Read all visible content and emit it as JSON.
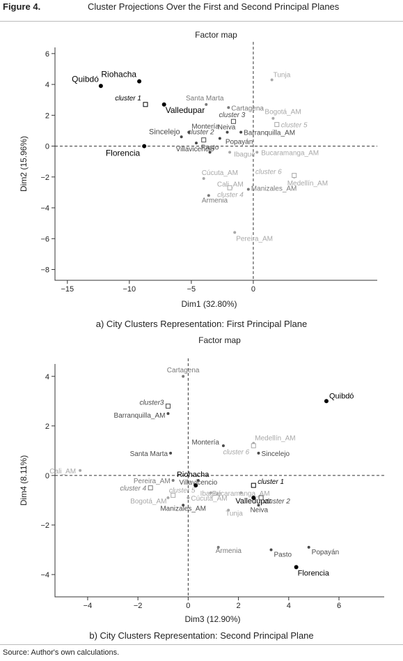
{
  "figure": {
    "label": "Figure 4.",
    "title": "Cluster Projections Over the First and Second Principal Planes",
    "source": "Source: Author's own calculations."
  },
  "chart_data": [
    {
      "type": "scatter",
      "title": "Factor map",
      "caption": "a) City Clusters Representation: First Principal Plane",
      "xlabel": "Dim1 (32.80%)",
      "ylabel": "Dim2 (15.96%)",
      "xlim": [
        -16,
        10
      ],
      "ylim": [
        -8.7,
        6.4
      ],
      "xticks": [
        -15,
        -10,
        -5,
        0
      ],
      "yticks": [
        6,
        4,
        2,
        0,
        -2,
        -4,
        -6,
        -8
      ],
      "points": [
        {
          "label": "Quibdó",
          "x": -12.3,
          "y": 3.9,
          "tone": "black",
          "lx": -3,
          "ly": -6,
          "anchor": "end",
          "size": 12
        },
        {
          "label": "Riohacha",
          "x": -9.2,
          "y": 4.2,
          "tone": "black",
          "lx": -4,
          "ly": -6,
          "anchor": "end",
          "size": 12
        },
        {
          "label": "Valledupar",
          "x": -7.2,
          "y": 2.7,
          "tone": "black",
          "lx": 2,
          "ly": 12,
          "anchor": "start",
          "size": 12
        },
        {
          "label": "Florencia",
          "x": -8.8,
          "y": 0.0,
          "tone": "black",
          "lx": -6,
          "ly": 14,
          "anchor": "end",
          "size": 12
        },
        {
          "label": "Sincelejo",
          "x": -5.8,
          "y": 0.6,
          "tone": "dark",
          "lx": -2,
          "ly": -4,
          "anchor": "end",
          "size": 11
        },
        {
          "label": "Montería",
          "x": -5.2,
          "y": 0.9,
          "tone": "dark",
          "lx": 4,
          "ly": -5,
          "anchor": "start",
          "size": 10
        },
        {
          "label": "Villavicencio",
          "x": -4.6,
          "y": 0.2,
          "tone": "dark",
          "lx": -2,
          "ly": 12,
          "anchor": "middle",
          "size": 10
        },
        {
          "label": "Santa Marta",
          "x": -3.8,
          "y": 2.7,
          "tone": "mid",
          "lx": -2,
          "ly": -6,
          "anchor": "middle",
          "size": 10
        },
        {
          "label": "Pasto",
          "x": -3.5,
          "y": -0.4,
          "tone": "dark",
          "lx": 0,
          "ly": -4,
          "anchor": "middle",
          "size": 10
        },
        {
          "label": "Cartagena",
          "x": -2.0,
          "y": 2.5,
          "tone": "mid",
          "lx": 4,
          "ly": 4,
          "anchor": "start",
          "size": 10
        },
        {
          "label": "Neiva",
          "x": -2.1,
          "y": 0.9,
          "tone": "dark",
          "lx": -1,
          "ly": -4,
          "anchor": "middle",
          "size": 10
        },
        {
          "label": "Popayán",
          "x": -2.7,
          "y": 0.5,
          "tone": "dark",
          "lx": 8,
          "ly": 8,
          "anchor": "start",
          "size": 10
        },
        {
          "label": "Ibagué",
          "x": -1.9,
          "y": -0.4,
          "tone": "light",
          "lx": 6,
          "ly": 6,
          "anchor": "start",
          "size": 10
        },
        {
          "label": "Barranquilla_AM",
          "x": -1.0,
          "y": 0.9,
          "tone": "dark",
          "lx": 4,
          "ly": 4,
          "anchor": "start",
          "size": 10
        },
        {
          "label": "Cúcuta_AM",
          "x": -4.0,
          "y": -2.1,
          "tone": "light",
          "lx": -3,
          "ly": -5,
          "anchor": "start",
          "size": 10
        },
        {
          "label": "Cali_AM",
          "x": -1.8,
          "y": -2.7,
          "tone": "light",
          "lx": -20,
          "ly": -2,
          "anchor": "start",
          "size": 10
        },
        {
          "label": "Armenia",
          "x": -3.6,
          "y": -3.2,
          "tone": "mid",
          "lx": -10,
          "ly": 10,
          "anchor": "start",
          "size": 10
        },
        {
          "label": "Manizales_AM",
          "x": -0.4,
          "y": -2.8,
          "tone": "mid",
          "lx": 4,
          "ly": 2,
          "anchor": "start",
          "size": 10
        },
        {
          "label": "Pereira_AM",
          "x": -1.5,
          "y": -5.6,
          "tone": "light",
          "lx": 2,
          "ly": 12,
          "anchor": "start",
          "size": 10
        },
        {
          "label": "Tunja",
          "x": 1.5,
          "y": 4.3,
          "tone": "light",
          "lx": 2,
          "ly": -4,
          "anchor": "start",
          "size": 10
        },
        {
          "label": "Bogotá_AM",
          "x": 1.6,
          "y": 1.8,
          "tone": "light",
          "lx": -12,
          "ly": -6,
          "anchor": "start",
          "size": 10
        },
        {
          "label": "Bucaramanga_AM",
          "x": 0.3,
          "y": -0.4,
          "tone": "light",
          "lx": 6,
          "ly": 4,
          "anchor": "start",
          "size": 10
        },
        {
          "label": "Medellín_AM",
          "x": 3.3,
          "y": -2.0,
          "tone": "light",
          "lx": -10,
          "ly": 12,
          "anchor": "start",
          "size": 10
        }
      ],
      "clusters": [
        {
          "label": "cluster 1",
          "x": -8.7,
          "y": 2.7,
          "tone": "black",
          "lx": -6,
          "ly": -6,
          "anchor": "end"
        },
        {
          "label": "cluster 2",
          "x": -4.0,
          "y": 0.4,
          "tone": "dark",
          "lx": -4,
          "ly": -8,
          "anchor": "middle"
        },
        {
          "label": "cluster 3",
          "x": -1.6,
          "y": 1.6,
          "tone": "dark",
          "lx": -2,
          "ly": -6,
          "anchor": "middle"
        },
        {
          "label": "cluster 4",
          "x": -1.9,
          "y": -2.7,
          "tone": "light",
          "lx": -18,
          "ly": 13,
          "anchor": "start"
        },
        {
          "label": "cluster 5",
          "x": 1.9,
          "y": 1.4,
          "tone": "light",
          "lx": 6,
          "ly": 4,
          "anchor": "start"
        },
        {
          "label": "cluster 6",
          "x": 3.3,
          "y": -1.9,
          "tone": "light",
          "lx": -18,
          "ly": -2,
          "anchor": "end"
        }
      ]
    },
    {
      "type": "scatter",
      "title": "Factor map",
      "caption": "b) City Clusters Representation: Second Principal Plane",
      "xlabel": "Dim3 (12.90%)",
      "ylabel": "Dim4 (8.11%)",
      "xlim": [
        -5.3,
        7.8
      ],
      "ylim": [
        -4.9,
        4.5
      ],
      "xticks": [
        -4,
        -2,
        0,
        2,
        4,
        6
      ],
      "yticks": [
        4,
        2,
        0,
        -2,
        -4
      ],
      "points": [
        {
          "label": "Quibdó",
          "x": 5.5,
          "y": 3.0,
          "tone": "black",
          "lx": 4,
          "ly": -4,
          "anchor": "start",
          "size": 11
        },
        {
          "label": "Cartagena",
          "x": -0.2,
          "y": 4.0,
          "tone": "mid",
          "lx": 0,
          "ly": -6,
          "anchor": "middle",
          "size": 10
        },
        {
          "label": "Barranquilla_AM",
          "x": -0.8,
          "y": 2.5,
          "tone": "dark",
          "lx": -4,
          "ly": 6,
          "anchor": "end",
          "size": 10
        },
        {
          "label": "Montería",
          "x": 1.4,
          "y": 1.2,
          "tone": "dark",
          "lx": -6,
          "ly": -2,
          "anchor": "end",
          "size": 10
        },
        {
          "label": "Medellín_AM",
          "x": 2.6,
          "y": 1.3,
          "tone": "light",
          "lx": 2,
          "ly": -4,
          "anchor": "start",
          "size": 10
        },
        {
          "label": "Sincelejo",
          "x": 2.8,
          "y": 0.9,
          "tone": "dark",
          "lx": 4,
          "ly": 4,
          "anchor": "start",
          "size": 10
        },
        {
          "label": "Santa Marta",
          "x": -0.7,
          "y": 0.9,
          "tone": "dark",
          "lx": -4,
          "ly": 4,
          "anchor": "end",
          "size": 10
        },
        {
          "label": "Cali_AM",
          "x": -4.3,
          "y": 0.2,
          "tone": "light",
          "lx": -6,
          "ly": 4,
          "anchor": "end",
          "size": 10
        },
        {
          "label": "Riohacha",
          "x": 0.3,
          "y": -0.4,
          "tone": "black",
          "lx": -4,
          "ly": -12,
          "anchor": "middle",
          "size": 11
        },
        {
          "label": "Villavicencio",
          "x": 0.4,
          "y": -0.2,
          "tone": "dark",
          "lx": 0,
          "ly": 6,
          "anchor": "middle",
          "size": 10
        },
        {
          "label": "Pereira_AM",
          "x": -0.6,
          "y": -0.2,
          "tone": "mid",
          "lx": -4,
          "ly": 4,
          "anchor": "end",
          "size": 10
        },
        {
          "label": "Ibagué",
          "x": 0.9,
          "y": -0.7,
          "tone": "light",
          "lx": 0,
          "ly": 4,
          "anchor": "middle",
          "size": 10
        },
        {
          "label": "Bucaramanga_AM",
          "x": 2.1,
          "y": -0.7,
          "tone": "light",
          "lx": 0,
          "ly": 4,
          "anchor": "middle",
          "size": 10
        },
        {
          "label": "Valledupar",
          "x": 2.6,
          "y": -0.9,
          "tone": "black",
          "lx": 0,
          "ly": 8,
          "anchor": "middle",
          "size": 11
        },
        {
          "label": "Bogotá_AM",
          "x": -0.8,
          "y": -0.9,
          "tone": "light",
          "lx": -2,
          "ly": 8,
          "anchor": "end",
          "size": 10
        },
        {
          "label": "Cúcuta_AM",
          "x": 0.0,
          "y": -0.9,
          "tone": "light",
          "lx": 4,
          "ly": 4,
          "anchor": "start",
          "size": 10
        },
        {
          "label": "Manizales_AM",
          "x": -0.2,
          "y": -1.2,
          "tone": "dark",
          "lx": 0,
          "ly": 8,
          "anchor": "middle",
          "size": 10
        },
        {
          "label": "Tunja",
          "x": 1.6,
          "y": -1.4,
          "tone": "light",
          "lx": -4,
          "ly": 8,
          "anchor": "start",
          "size": 10
        },
        {
          "label": "Neiva",
          "x": 2.8,
          "y": -1.2,
          "tone": "dark",
          "lx": -12,
          "ly": 10,
          "anchor": "start",
          "size": 10
        },
        {
          "label": "Armenia",
          "x": 1.2,
          "y": -2.9,
          "tone": "mid",
          "lx": -4,
          "ly": 8,
          "anchor": "start",
          "size": 10
        },
        {
          "label": "Pasto",
          "x": 3.3,
          "y": -3.0,
          "tone": "dark",
          "lx": 4,
          "ly": 10,
          "anchor": "start",
          "size": 10
        },
        {
          "label": "Popayán",
          "x": 4.8,
          "y": -2.9,
          "tone": "dark",
          "lx": 4,
          "ly": 10,
          "anchor": "start",
          "size": 10
        },
        {
          "label": "Florencia",
          "x": 4.3,
          "y": -3.7,
          "tone": "black",
          "lx": 2,
          "ly": 12,
          "anchor": "start",
          "size": 11
        }
      ],
      "clusters": [
        {
          "label": "cluster3",
          "x": -0.8,
          "y": 2.8,
          "tone": "dark",
          "lx": -6,
          "ly": -2,
          "anchor": "end"
        },
        {
          "label": "cluster 6",
          "x": 2.6,
          "y": 1.2,
          "tone": "light",
          "lx": -6,
          "ly": 12,
          "anchor": "end"
        },
        {
          "label": "cluster 1",
          "x": 2.6,
          "y": -0.4,
          "tone": "black",
          "lx": 6,
          "ly": -2,
          "anchor": "start"
        },
        {
          "label": "cluster 2",
          "x": 2.9,
          "y": -0.9,
          "tone": "dark",
          "lx": 4,
          "ly": 8,
          "anchor": "start"
        },
        {
          "label": "cluster 4",
          "x": -1.5,
          "y": -0.5,
          "tone": "mid",
          "lx": -6,
          "ly": 4,
          "anchor": "end"
        },
        {
          "label": "cluster 5",
          "x": -0.6,
          "y": -0.8,
          "tone": "light",
          "lx": -6,
          "ly": -4,
          "anchor": "start"
        }
      ]
    }
  ]
}
